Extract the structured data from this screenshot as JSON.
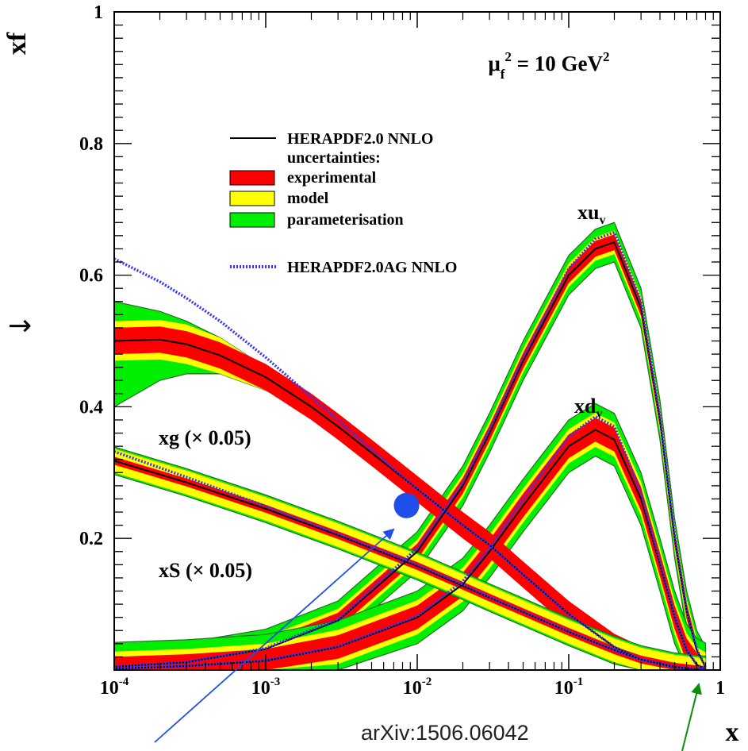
{
  "chart_data": {
    "type": "line",
    "scale_note": "μf² = 10 GeV²",
    "xlabel": "x",
    "ylabel": "xf",
    "xscale": "log",
    "xlim": [
      0.0001,
      1
    ],
    "ylim": [
      0,
      1
    ],
    "x_tick_labels": [
      "10-4",
      "10-3",
      "10-2",
      "10-1",
      "1"
    ],
    "y_tick_labels": [
      "0.2",
      "0.4",
      "0.6",
      "0.8",
      "1"
    ],
    "y_ticks": [
      0.2,
      0.4,
      0.6,
      0.8,
      1.0
    ],
    "legend": {
      "central_label": "HERAPDF2.0 NNLO",
      "uncertainty_header": "uncertainties:",
      "experimental": "experimental",
      "model": "model",
      "parameterisation": "parameterisation",
      "ag_label": "HERAPDF2.0AG NNLO",
      "placement": "upper-center"
    },
    "curve_labels": {
      "xuv": "xuv",
      "xdv": "xdv",
      "xg": "xg (× 0.05)",
      "xs": "xS (× 0.05)"
    },
    "colors": {
      "central": "#000000",
      "experimental": "#ff0000",
      "model": "#ffff00",
      "parameterisation": "#00ee00",
      "ag": "#3333ff",
      "marker": "#1f4ee8",
      "arrow_blue": "#1f4ee8",
      "arrow_green": "#0a8f0a"
    },
    "series": [
      {
        "name": "xuv",
        "x": [
          0.0001,
          0.0003,
          0.001,
          0.003,
          0.01,
          0.02,
          0.03,
          0.05,
          0.1,
          0.15,
          0.2,
          0.3,
          0.4,
          0.5,
          0.6,
          0.7,
          0.8
        ],
        "central": [
          0.005,
          0.012,
          0.032,
          0.075,
          0.18,
          0.28,
          0.36,
          0.47,
          0.6,
          0.64,
          0.65,
          0.55,
          0.38,
          0.2,
          0.09,
          0.03,
          0.005
        ],
        "ag": [
          0.005,
          0.012,
          0.033,
          0.077,
          0.185,
          0.285,
          0.365,
          0.475,
          0.61,
          0.655,
          0.665,
          0.56,
          0.385,
          0.205,
          0.092,
          0.031,
          0.005
        ],
        "exp_band": 0.012,
        "model_band": 0.006,
        "param_band": 0.012
      },
      {
        "name": "xdv",
        "x": [
          0.0001,
          0.0003,
          0.001,
          0.003,
          0.01,
          0.02,
          0.03,
          0.05,
          0.1,
          0.15,
          0.2,
          0.3,
          0.4,
          0.5,
          0.6,
          0.7,
          0.8
        ],
        "central": [
          0.002,
          0.006,
          0.014,
          0.035,
          0.08,
          0.13,
          0.18,
          0.25,
          0.34,
          0.365,
          0.35,
          0.26,
          0.16,
          0.08,
          0.03,
          0.008,
          0.001
        ],
        "ag": [
          0.002,
          0.006,
          0.015,
          0.036,
          0.082,
          0.135,
          0.185,
          0.26,
          0.355,
          0.385,
          0.37,
          0.27,
          0.165,
          0.083,
          0.031,
          0.008,
          0.001
        ],
        "exp_band": 0.018,
        "model_band": 0.008,
        "param_band": 0.014
      },
      {
        "name": "xg (× 0.05)",
        "x": [
          0.0001,
          0.0002,
          0.0003,
          0.0005,
          0.001,
          0.002,
          0.003,
          0.005,
          0.01,
          0.02,
          0.03,
          0.05,
          0.1,
          0.2,
          0.3,
          0.5,
          0.7,
          0.8
        ],
        "central": [
          0.5,
          0.502,
          0.495,
          0.478,
          0.445,
          0.4,
          0.37,
          0.33,
          0.275,
          0.22,
          0.19,
          0.145,
          0.085,
          0.035,
          0.016,
          0.004,
          0.001,
          0.0
        ],
        "ag": [
          0.625,
          0.59,
          0.565,
          0.53,
          0.475,
          0.415,
          0.38,
          0.335,
          0.275,
          0.22,
          0.19,
          0.145,
          0.085,
          0.035,
          0.016,
          0.004,
          0.001,
          0.0
        ],
        "param_upper": [
          0.56,
          0.545,
          0.53,
          0.505,
          0.46,
          0.41,
          0.375,
          0.333,
          0.277,
          0.222,
          0.191,
          0.146,
          0.086,
          0.036,
          0.016,
          0.004,
          0.001,
          0.0
        ],
        "param_lower": [
          0.4,
          0.44,
          0.45,
          0.45,
          0.425,
          0.39,
          0.362,
          0.326,
          0.272,
          0.218,
          0.188,
          0.143,
          0.084,
          0.034,
          0.015,
          0.004,
          0.001,
          0.0
        ],
        "exp_band": 0.02,
        "model_band": 0.01
      },
      {
        "name": "xS (× 0.05)",
        "x": [
          0.0001,
          0.0003,
          0.001,
          0.003,
          0.01,
          0.02,
          0.03,
          0.05,
          0.1,
          0.2,
          0.3,
          0.5,
          0.7,
          0.8
        ],
        "central": [
          0.318,
          0.285,
          0.245,
          0.205,
          0.158,
          0.128,
          0.11,
          0.088,
          0.058,
          0.03,
          0.016,
          0.005,
          0.001,
          0.0
        ],
        "ag": [
          0.332,
          0.293,
          0.249,
          0.207,
          0.16,
          0.13,
          0.111,
          0.089,
          0.059,
          0.03,
          0.016,
          0.005,
          0.001,
          0.0
        ],
        "exp_band": 0.006,
        "model_band": 0.012,
        "param_band": 0.003
      }
    ],
    "marker": {
      "x": 0.0085,
      "y": 0.25
    }
  },
  "footer": {
    "arxiv": "arXiv:1506.06042",
    "side_arrow": "→"
  }
}
